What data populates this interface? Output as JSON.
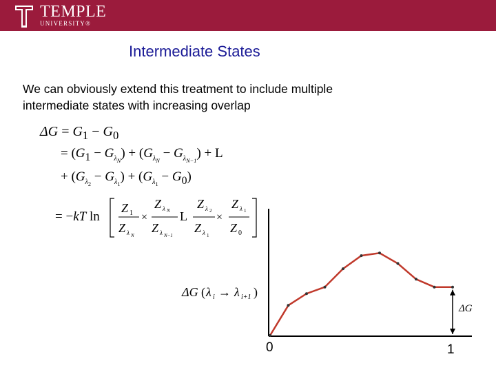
{
  "header": {
    "logo_name": "TEMPLE",
    "logo_sub": "UNIVERSITY®",
    "brand_color": "#9b1b3c"
  },
  "slide": {
    "title": "Intermediate States",
    "body_line1": "We can obviously extend this treatment to  include multiple",
    "body_line2": "intermediate states with  increasing overlap"
  },
  "equations": {
    "line1": "ΔG = G₁ − G₀",
    "line2": "= (G₁ − G_λN) + (G_λN − G_λN−1) + L",
    "line3": "+ (G_λ2 − G_λ1) + (G_λ1 − G₀)",
    "line4": "= −kT ln [ Z₁/Z_λN × Z_λN/Z_λN−1 L Z_λ2/Z_λ1 × Z_λ1/Z₀ ]"
  },
  "chart": {
    "curve_color": "#c0392b",
    "points_label": "ΔG(λi → λi+1)",
    "delta_label": "ΔG",
    "x_start_label": "0",
    "x_end_label": "1"
  },
  "chart_data": {
    "type": "line",
    "x": [
      0,
      0.1,
      0.2,
      0.3,
      0.4,
      0.5,
      0.6,
      0.7,
      0.8,
      0.9,
      1.0
    ],
    "values": [
      0.0,
      0.23,
      0.32,
      0.37,
      0.51,
      0.61,
      0.63,
      0.55,
      0.43,
      0.37,
      0.37
    ],
    "xlim": [
      0,
      1
    ]
  }
}
